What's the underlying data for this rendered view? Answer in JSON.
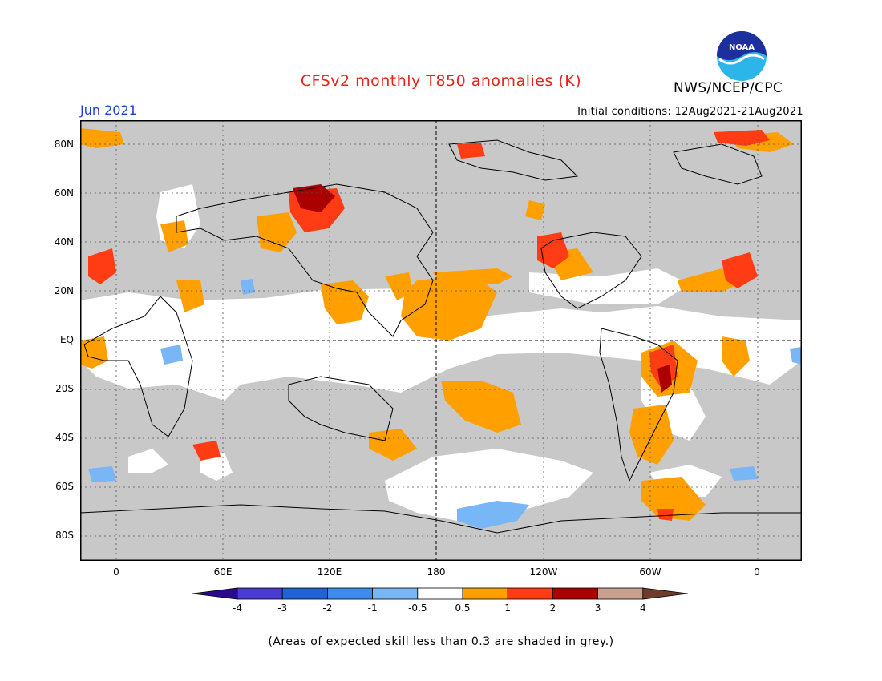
{
  "header": {
    "title": "CFSv2 monthly T850 anomalies (K)",
    "month": "Jun 2021",
    "initial_conditions": "Initial conditions: 12Aug2021-21Aug2021",
    "agency": "NWS/NCEP/CPC",
    "logo_text": "NOAA"
  },
  "colors": {
    "title": "#e8231b",
    "month": "#1d3fd6",
    "grey_mask": "#c8c8c8",
    "coast": "#000000"
  },
  "map": {
    "lat_labels": [
      "80N",
      "60N",
      "40N",
      "20N",
      "EQ",
      "20S",
      "40S",
      "60S",
      "80S"
    ],
    "lon_labels": [
      "0",
      "60E",
      "120E",
      "180",
      "120W",
      "60W",
      "0"
    ]
  },
  "colorbar": {
    "labels": [
      "-4",
      "-3",
      "-2",
      "-1",
      "-0.5",
      "0.5",
      "1",
      "2",
      "3",
      "4"
    ],
    "colors": [
      "#2a0a8c",
      "#4a3bd1",
      "#1f63d6",
      "#3d8cf0",
      "#78b6f5",
      "#ffffff",
      "#ffa000",
      "#ff3c14",
      "#aa0000",
      "#c8a090",
      "#6e3c28"
    ]
  },
  "footnote": "(Areas of expected skill less than 0.3 are shaded in grey.)"
}
